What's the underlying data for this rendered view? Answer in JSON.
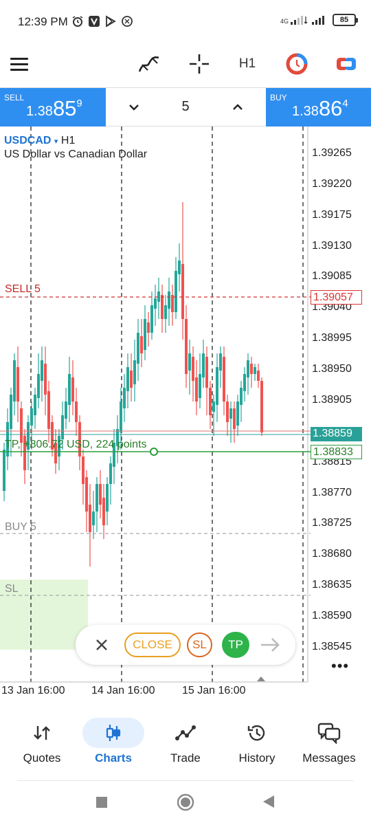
{
  "status_bar": {
    "time": "12:39 PM",
    "network": "4G",
    "battery": "85",
    "icons": [
      "alarm-icon",
      "v-app-icon",
      "play-store-icon",
      "copyleft-icon"
    ]
  },
  "toolbar": {
    "timeframe": "H1",
    "icons": [
      "menu-icon",
      "indicators-icon",
      "crosshair-icon",
      "one-click-trading-icon",
      "trade-toggle-icon"
    ]
  },
  "trade": {
    "sell_label": "SELL",
    "sell_price_prefix": "1.38",
    "sell_price_big": "85",
    "sell_price_sup": "9",
    "buy_label": "BUY",
    "buy_price_prefix": "1.38",
    "buy_price_big": "86",
    "buy_price_sup": "4",
    "volume": "5"
  },
  "chart": {
    "symbol": "USDCAD",
    "symbol_caret": "▾",
    "timeframe": "H1",
    "description": "US Dollar vs Canadian Dollar",
    "price_axis": [
      "1.39265",
      "1.39220",
      "1.39175",
      "1.39130",
      "1.39085",
      "1.39040",
      "1.38995",
      "1.38950",
      "1.38905",
      "1.38815",
      "1.38770",
      "1.38725",
      "1.38680",
      "1.38635",
      "1.38590",
      "1.38545"
    ],
    "date_axis": [
      "13 Jan 16:00",
      "14 Jan 16:00",
      "15 Jan 16:00"
    ],
    "lines": {
      "sell": {
        "label": "SELL 5",
        "price": "1.39057",
        "color": "#d33333"
      },
      "tp": {
        "label": "TP, +806.72 USD, 224 points",
        "price": "1.38833",
        "color": "#2a9d3a"
      },
      "buy": {
        "label": "BUY 5",
        "color": "#999999"
      },
      "sl": {
        "label": "SL",
        "color": "#999999"
      },
      "current": {
        "price": "1.38859",
        "color": "#2aa198"
      }
    },
    "more": "•••"
  },
  "actions": {
    "close": "CLOSE",
    "sl": "SL",
    "tp": "TP"
  },
  "nav": {
    "items": [
      {
        "label": "Quotes",
        "icon": "quotes-icon"
      },
      {
        "label": "Charts",
        "icon": "charts-icon",
        "active": true
      },
      {
        "label": "Trade",
        "icon": "trade-icon"
      },
      {
        "label": "History",
        "icon": "history-icon"
      },
      {
        "label": "Messages",
        "icon": "messages-icon"
      }
    ]
  },
  "colors": {
    "accent": "#2f8ff0",
    "bull": "#26a69a",
    "bear": "#ef5350",
    "sl_zone": "#e3f6d9"
  }
}
